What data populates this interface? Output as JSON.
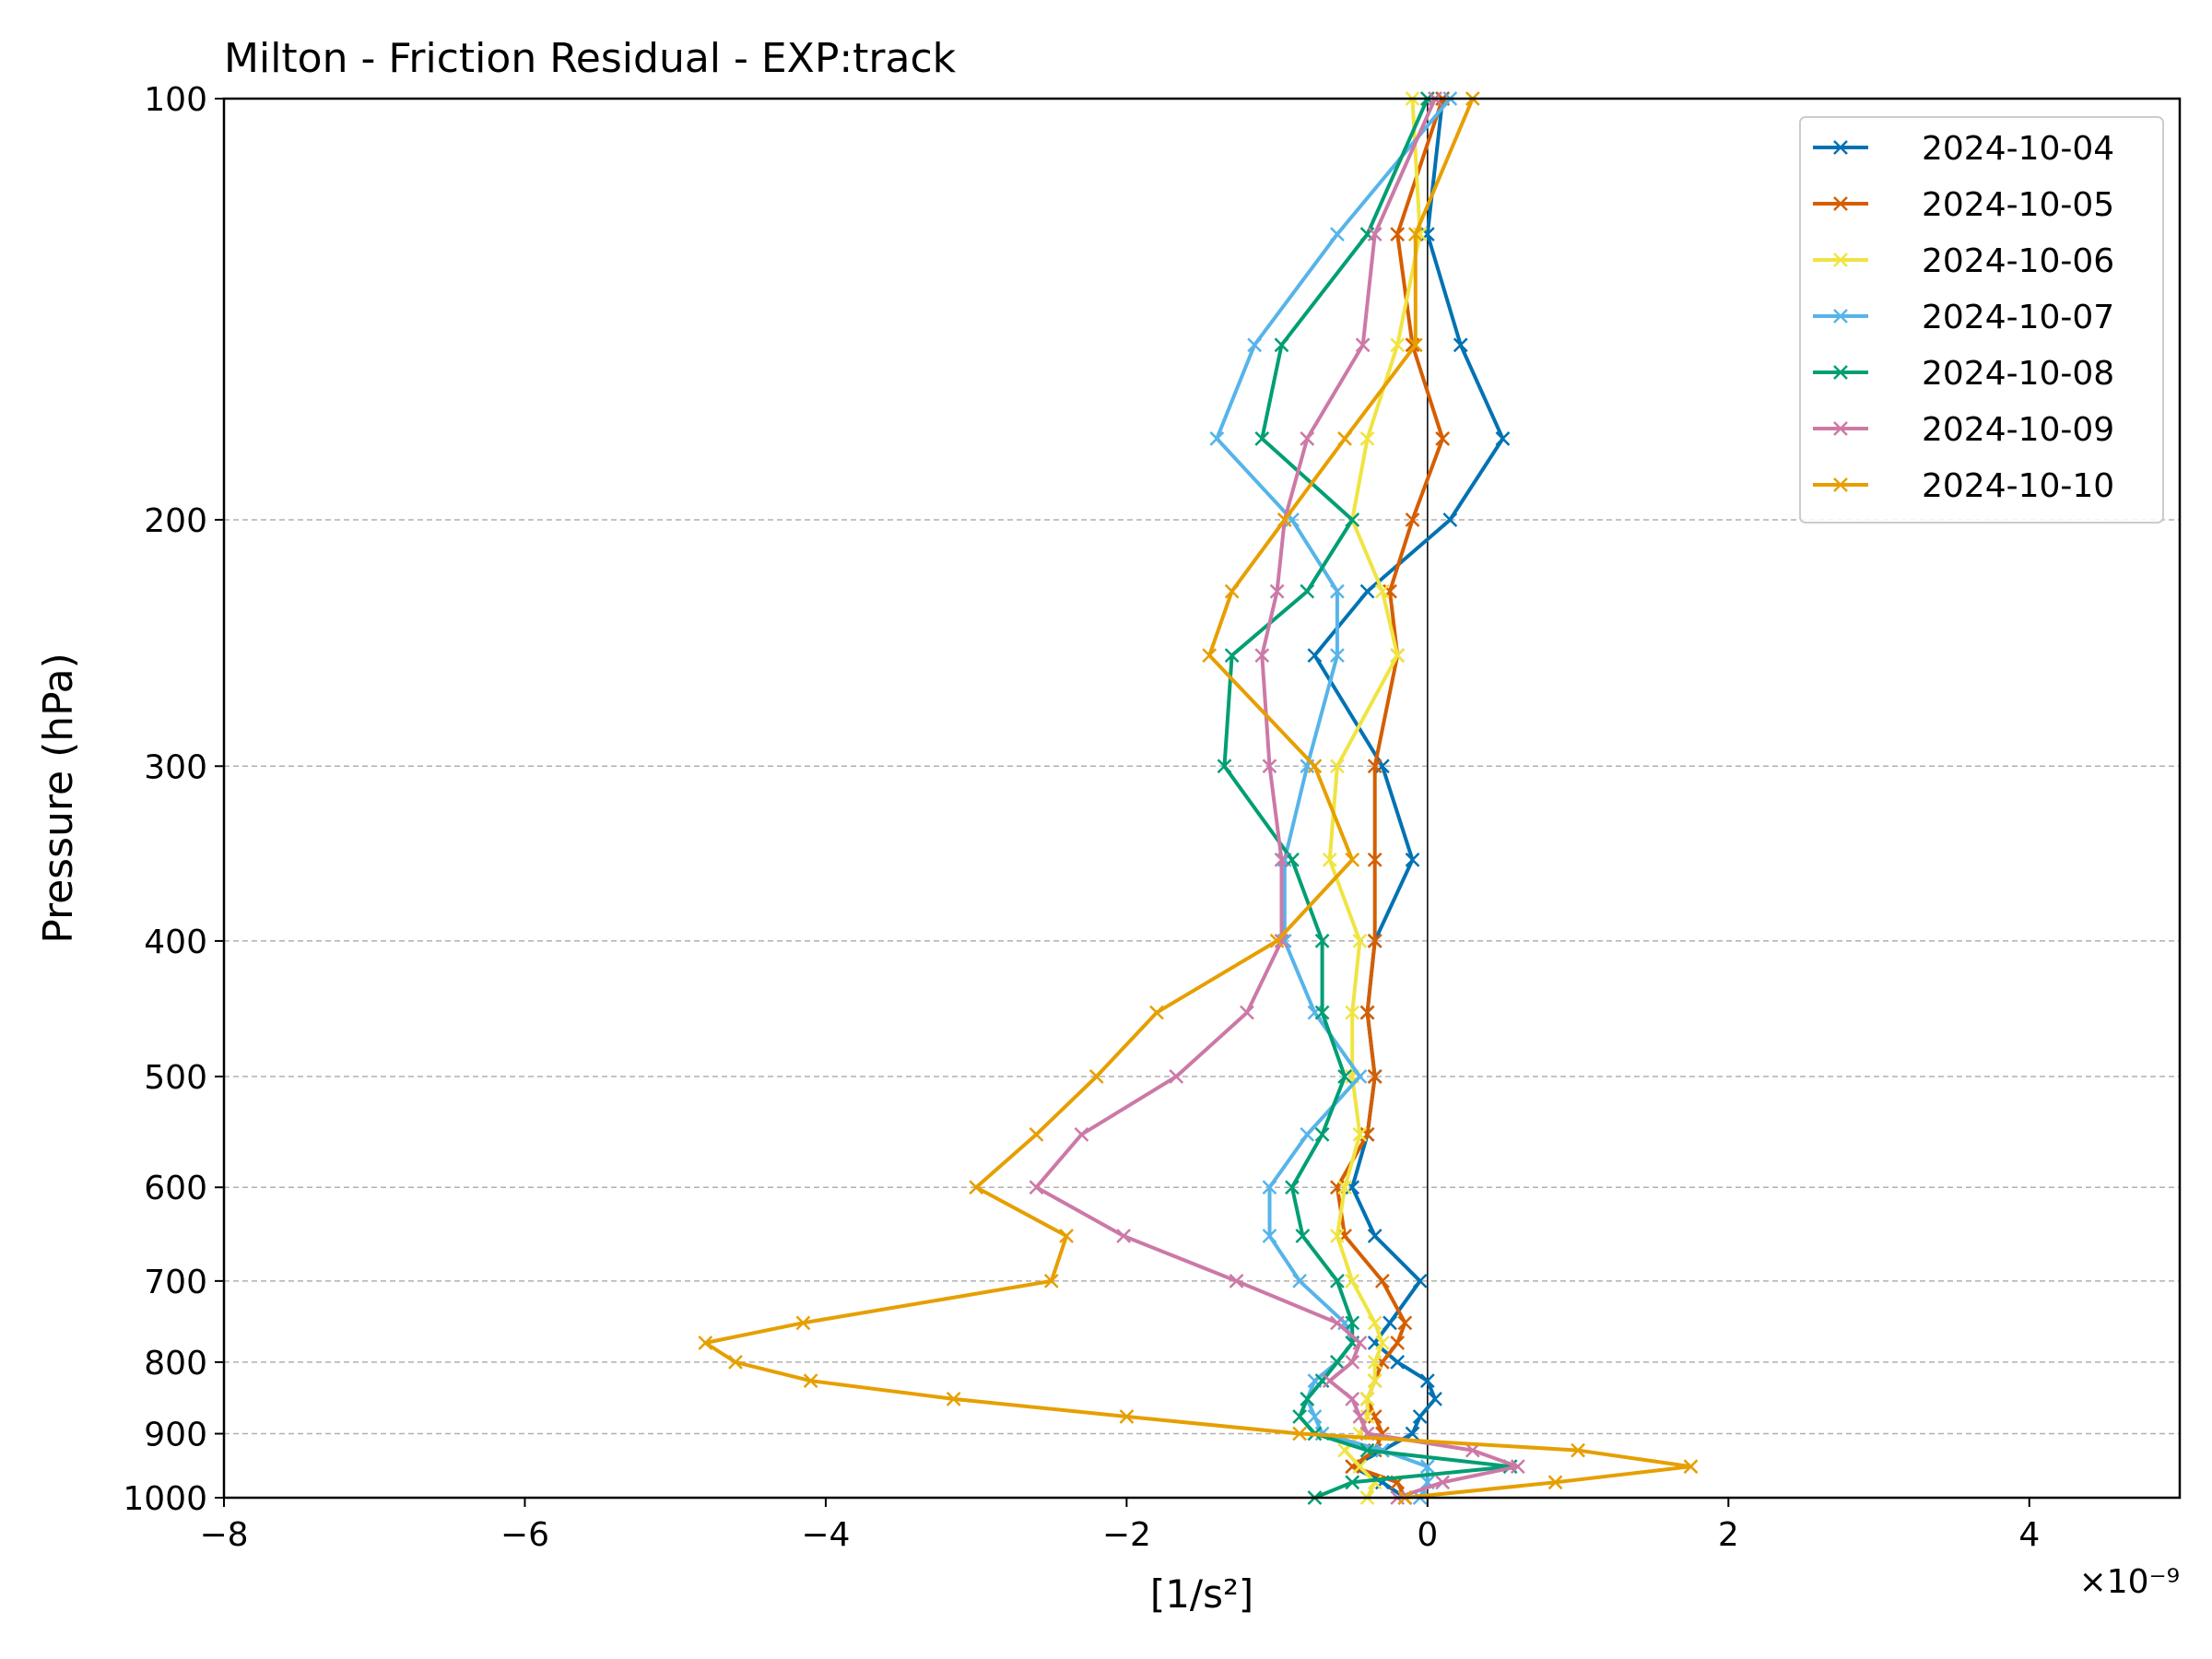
{
  "chart_data": {
    "type": "line",
    "title": "Milton - Friction Residual - EXP:track",
    "xlabel": "[1/s²]",
    "ylabel": "Pressure (hPa)",
    "x_offset_label": "×10⁻⁹",
    "x_scale_exponent": -9,
    "xlim": [
      -8,
      5
    ],
    "ylim": [
      1000,
      100
    ],
    "yscale": "log",
    "xticks": [
      -8,
      -6,
      -4,
      -2,
      0,
      2,
      4
    ],
    "xtick_labels": [
      "−8",
      "−6",
      "−4",
      "−2",
      "0",
      "2",
      "4"
    ],
    "yticks": [
      100,
      200,
      300,
      400,
      500,
      600,
      700,
      800,
      900,
      1000
    ],
    "ytick_labels": [
      "100",
      "200",
      "300",
      "400",
      "500",
      "600",
      "700",
      "800",
      "900",
      "1000"
    ],
    "grid": "horizontal dashed at y ticks",
    "zero_line": true,
    "legend": "top-right",
    "pressure_levels": [
      100,
      125,
      150,
      175,
      200,
      225,
      250,
      300,
      350,
      400,
      450,
      500,
      550,
      600,
      650,
      700,
      750,
      775,
      800,
      825,
      850,
      875,
      900,
      925,
      950,
      975,
      1000
    ],
    "series": [
      {
        "name": "2024-10-04",
        "color": "#0072B2",
        "values": [
          0.1,
          0.0,
          0.22,
          0.5,
          0.15,
          -0.4,
          -0.75,
          -0.3,
          -0.1,
          -0.35,
          -0.4,
          -0.35,
          -0.4,
          -0.5,
          -0.35,
          -0.05,
          -0.25,
          -0.35,
          -0.2,
          0.0,
          0.05,
          -0.05,
          -0.1,
          -0.3,
          -0.5,
          -0.3,
          -0.15
        ]
      },
      {
        "name": "2024-10-05",
        "color": "#D55E00",
        "values": [
          0.1,
          -0.2,
          -0.1,
          0.1,
          -0.1,
          -0.25,
          -0.2,
          -0.35,
          -0.35,
          -0.35,
          -0.4,
          -0.35,
          -0.4,
          -0.6,
          -0.55,
          -0.3,
          -0.15,
          -0.2,
          -0.3,
          -0.35,
          -0.4,
          -0.35,
          -0.3,
          -0.35,
          -0.5,
          -0.2,
          -0.15
        ]
      },
      {
        "name": "2024-10-06",
        "color": "#F0E442",
        "values": [
          -0.1,
          -0.05,
          -0.2,
          -0.4,
          -0.5,
          -0.3,
          -0.2,
          -0.6,
          -0.65,
          -0.45,
          -0.5,
          -0.5,
          -0.45,
          -0.55,
          -0.6,
          -0.5,
          -0.35,
          -0.3,
          -0.35,
          -0.35,
          -0.4,
          -0.4,
          -0.45,
          -0.55,
          -0.45,
          -0.35,
          -0.4
        ]
      },
      {
        "name": "2024-10-07",
        "color": "#56B4E9",
        "values": [
          0.15,
          -0.6,
          -1.15,
          -1.4,
          -0.9,
          -0.6,
          -0.6,
          -0.8,
          -0.95,
          -0.95,
          -0.75,
          -0.45,
          -0.8,
          -1.05,
          -1.05,
          -0.85,
          -0.55,
          -0.5,
          -0.6,
          -0.75,
          -0.8,
          -0.75,
          -0.7,
          -0.3,
          0.0,
          0.0,
          -0.05
        ]
      },
      {
        "name": "2024-10-08",
        "color": "#009E73",
        "values": [
          0.0,
          -0.4,
          -0.97,
          -1.1,
          -0.5,
          -0.8,
          -1.3,
          -1.35,
          -0.9,
          -0.7,
          -0.7,
          -0.55,
          -0.7,
          -0.9,
          -0.83,
          -0.6,
          -0.5,
          -0.5,
          -0.6,
          -0.7,
          -0.8,
          -0.85,
          -0.75,
          -0.4,
          0.55,
          -0.5,
          -0.75
        ]
      },
      {
        "name": "2024-10-09",
        "color": "#CC79A7",
        "values": [
          0.05,
          -0.35,
          -0.43,
          -0.8,
          -0.95,
          -1.0,
          -1.1,
          -1.05,
          -0.97,
          -0.97,
          -1.2,
          -1.67,
          -2.3,
          -2.6,
          -2.02,
          -1.27,
          -0.6,
          -0.45,
          -0.5,
          -0.65,
          -0.5,
          -0.45,
          -0.4,
          0.3,
          0.6,
          0.1,
          -0.2
        ]
      },
      {
        "name": "2024-10-10",
        "color": "#E69F00",
        "values": [
          0.3,
          -0.08,
          -0.08,
          -0.55,
          -0.95,
          -1.3,
          -1.45,
          -0.75,
          -0.5,
          -1.0,
          -1.8,
          -2.2,
          -2.6,
          -3.0,
          -2.4,
          -2.5,
          -4.15,
          -4.8,
          -4.6,
          -4.1,
          -3.15,
          -2.0,
          -0.85,
          1.0,
          1.75,
          0.85,
          -0.15
        ]
      }
    ]
  }
}
